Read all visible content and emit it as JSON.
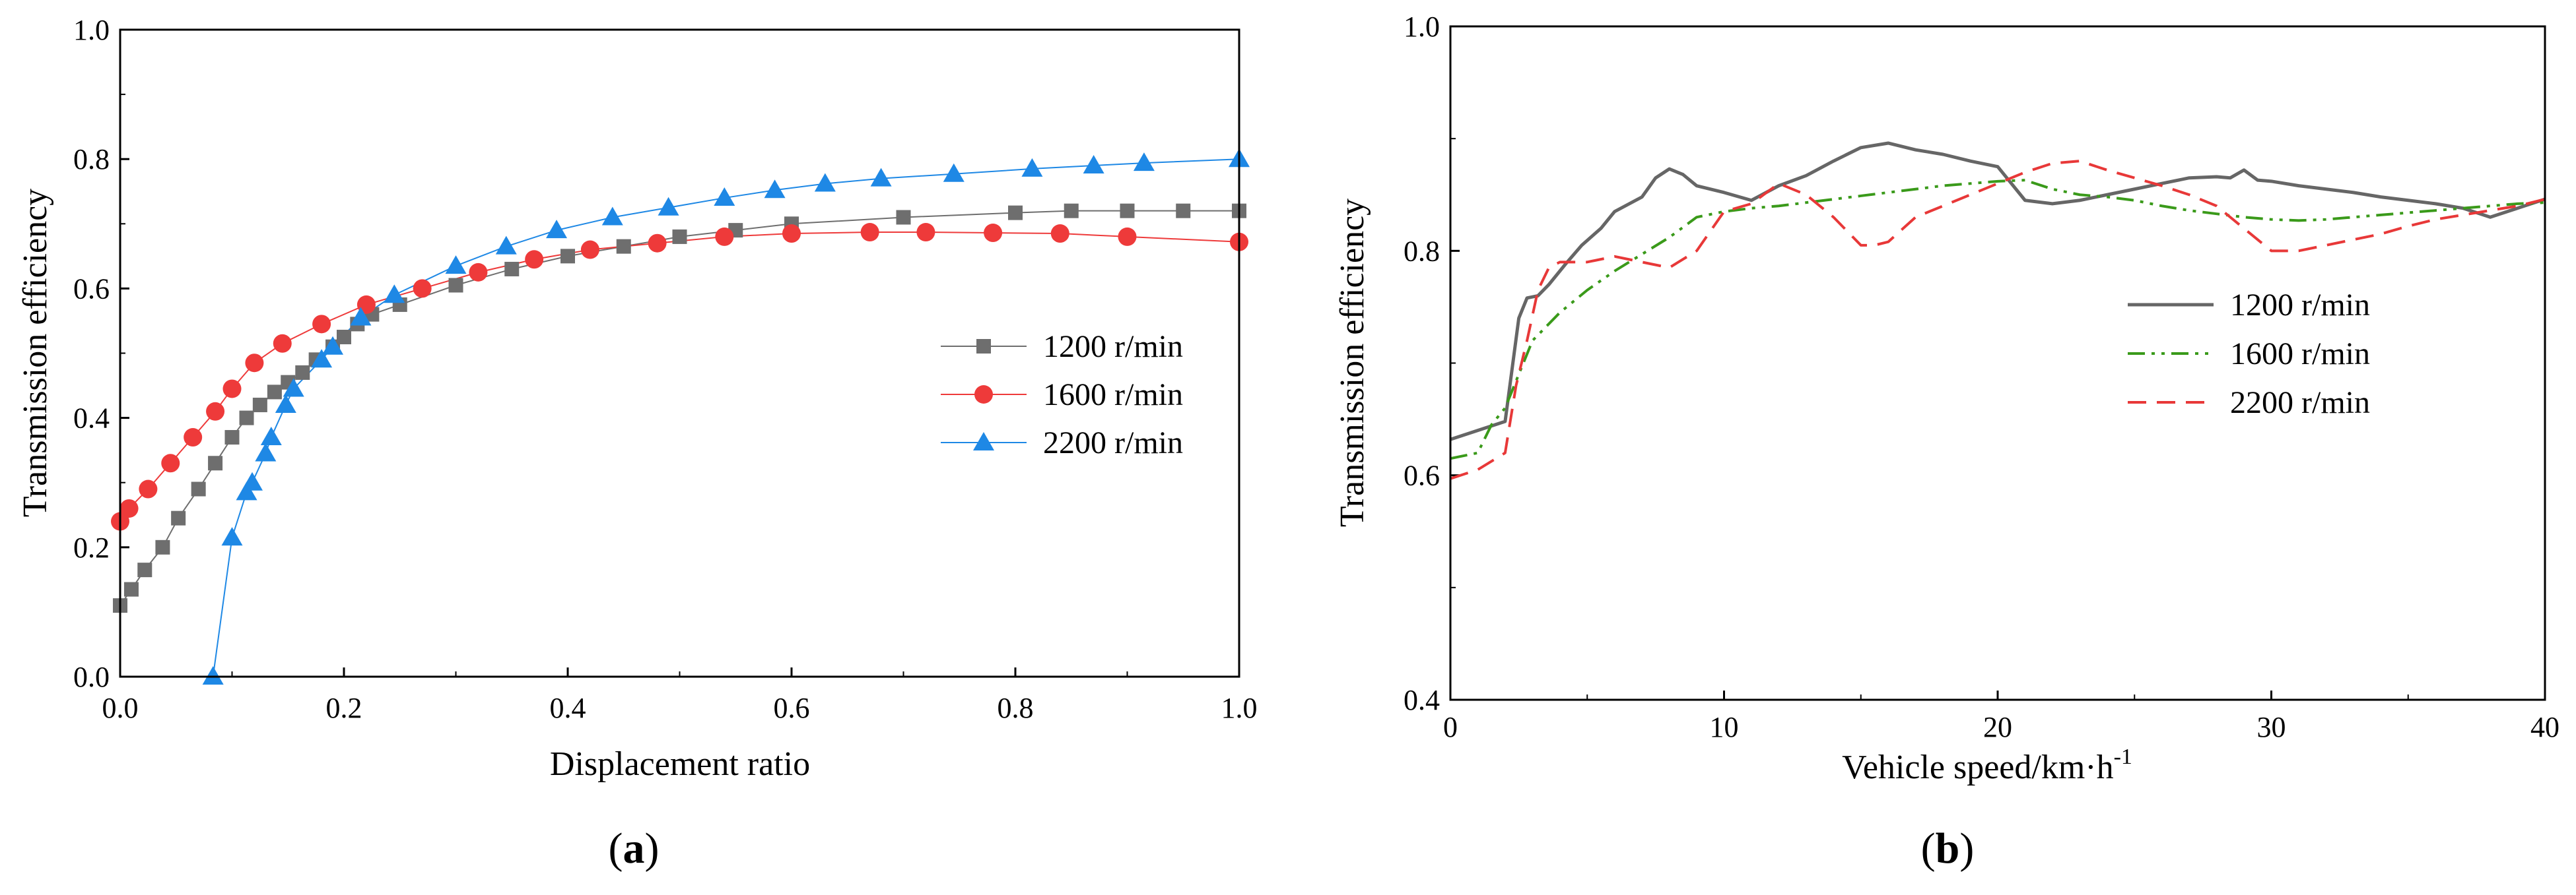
{
  "chart_data": [
    {
      "type": "line",
      "panel_label": "a",
      "xlabel": "Displacement ratio",
      "ylabel": "Transmission efficiency",
      "xlim": [
        0,
        1.0
      ],
      "ylim": [
        0,
        1.0
      ],
      "xticks": [
        "0.0",
        "0.2",
        "0.4",
        "0.6",
        "0.8",
        "1.0"
      ],
      "yticks": [
        "0.0",
        "0.2",
        "0.4",
        "0.6",
        "0.8",
        "1.0"
      ],
      "legend_position": "center-right",
      "series": [
        {
          "name": "1200 r/min",
          "color": "#6e6e6e",
          "marker": "square",
          "x": [
            0.0,
            0.01,
            0.022,
            0.038,
            0.052,
            0.07,
            0.085,
            0.1,
            0.113,
            0.125,
            0.138,
            0.15,
            0.163,
            0.175,
            0.19,
            0.2,
            0.212,
            0.225,
            0.25,
            0.3,
            0.35,
            0.4,
            0.45,
            0.5,
            0.55,
            0.6,
            0.7,
            0.8,
            0.85,
            0.9,
            0.95,
            1.0
          ],
          "y": [
            0.11,
            0.135,
            0.165,
            0.2,
            0.245,
            0.29,
            0.33,
            0.37,
            0.4,
            0.42,
            0.44,
            0.455,
            0.47,
            0.49,
            0.51,
            0.525,
            0.545,
            0.56,
            0.575,
            0.605,
            0.63,
            0.65,
            0.665,
            0.68,
            0.69,
            0.7,
            0.71,
            0.717,
            0.72,
            0.72,
            0.72,
            0.72
          ]
        },
        {
          "name": "1600 r/min",
          "color": "#ee3a3a",
          "marker": "circle",
          "x": [
            0.0,
            0.008,
            0.025,
            0.045,
            0.065,
            0.085,
            0.1,
            0.12,
            0.145,
            0.18,
            0.22,
            0.27,
            0.32,
            0.37,
            0.42,
            0.48,
            0.54,
            0.6,
            0.67,
            0.72,
            0.78,
            0.84,
            0.9,
            1.0
          ],
          "y": [
            0.24,
            0.26,
            0.29,
            0.33,
            0.37,
            0.41,
            0.445,
            0.485,
            0.515,
            0.545,
            0.575,
            0.6,
            0.625,
            0.645,
            0.66,
            0.67,
            0.68,
            0.685,
            0.687,
            0.687,
            0.686,
            0.685,
            0.68,
            0.672
          ]
        },
        {
          "name": "2200 r/min",
          "color": "#1e88e5",
          "marker": "triangle",
          "x": [
            0.083,
            0.1,
            0.113,
            0.118,
            0.13,
            0.135,
            0.148,
            0.155,
            0.18,
            0.19,
            0.215,
            0.245,
            0.3,
            0.345,
            0.39,
            0.44,
            0.49,
            0.54,
            0.585,
            0.63,
            0.68,
            0.745,
            0.815,
            0.87,
            0.915,
            1.0
          ],
          "y": [
            0.0,
            0.215,
            0.285,
            0.3,
            0.345,
            0.37,
            0.42,
            0.445,
            0.49,
            0.51,
            0.555,
            0.59,
            0.635,
            0.665,
            0.69,
            0.71,
            0.725,
            0.74,
            0.752,
            0.762,
            0.77,
            0.777,
            0.785,
            0.79,
            0.794,
            0.8
          ]
        }
      ]
    },
    {
      "type": "line",
      "panel_label": "b",
      "xlabel_main": "Vehicle speed/km·h",
      "xlabel_sup": "-1",
      "ylabel": "Transmission efficiency",
      "xlim": [
        0,
        40
      ],
      "ylim": [
        0.4,
        1.0
      ],
      "xticks": [
        "0",
        "10",
        "20",
        "30",
        "40"
      ],
      "yticks": [
        "0.4",
        "0.6",
        "0.8",
        "1.0"
      ],
      "legend_position": "center-right",
      "series": [
        {
          "name": "1200 r/min",
          "color": "#666666",
          "style": "solid",
          "x": [
            0,
            1,
            2,
            2.5,
            2.8,
            3.2,
            3.6,
            4.2,
            4.8,
            5.5,
            6,
            7,
            7.5,
            8,
            8.5,
            9,
            10,
            11,
            12,
            13,
            14,
            15,
            16,
            17,
            18,
            19,
            20,
            20.5,
            21,
            22,
            23,
            24,
            25,
            26,
            27,
            28,
            28.5,
            29,
            29.5,
            30,
            31,
            32,
            33,
            34,
            35,
            36,
            37,
            38,
            39,
            40
          ],
          "y": [
            0.632,
            0.64,
            0.648,
            0.74,
            0.758,
            0.76,
            0.77,
            0.788,
            0.805,
            0.82,
            0.835,
            0.848,
            0.865,
            0.873,
            0.868,
            0.858,
            0.852,
            0.845,
            0.858,
            0.867,
            0.88,
            0.892,
            0.896,
            0.89,
            0.886,
            0.88,
            0.875,
            0.86,
            0.845,
            0.842,
            0.845,
            0.85,
            0.855,
            0.86,
            0.865,
            0.866,
            0.865,
            0.872,
            0.863,
            0.862,
            0.858,
            0.855,
            0.852,
            0.848,
            0.845,
            0.842,
            0.838,
            0.83,
            0.838,
            0.846
          ]
        },
        {
          "name": "1600 r/min",
          "color": "#3a9a1a",
          "style": "dash-dot-dot",
          "x": [
            0,
            1,
            1.5,
            2,
            2.5,
            3,
            4,
            5,
            6,
            7,
            8,
            9,
            10,
            11,
            12,
            13,
            14,
            15,
            16,
            17,
            18,
            19,
            20,
            21,
            22,
            23,
            24,
            25,
            26,
            27,
            28,
            29,
            30,
            31,
            32,
            33,
            34,
            35,
            36,
            37,
            38,
            39,
            40
          ],
          "y": [
            0.615,
            0.62,
            0.645,
            0.66,
            0.69,
            0.72,
            0.745,
            0.765,
            0.782,
            0.797,
            0.812,
            0.83,
            0.835,
            0.838,
            0.84,
            0.843,
            0.846,
            0.849,
            0.852,
            0.855,
            0.858,
            0.86,
            0.862,
            0.863,
            0.855,
            0.85,
            0.848,
            0.845,
            0.84,
            0.836,
            0.833,
            0.83,
            0.828,
            0.827,
            0.828,
            0.83,
            0.832,
            0.834,
            0.836,
            0.838,
            0.84,
            0.842,
            0.843
          ]
        },
        {
          "name": "2200 r/min",
          "color": "#e83838",
          "style": "dashed",
          "x": [
            0,
            1,
            2,
            2.4,
            2.8,
            3.2,
            3.6,
            4,
            5,
            6,
            7,
            8,
            9,
            10,
            11,
            12,
            13,
            14,
            15,
            15.5,
            16,
            17,
            18,
            19,
            20,
            21,
            22,
            23,
            24,
            25,
            26,
            27,
            28,
            29,
            30,
            31,
            32,
            33,
            34,
            35,
            36,
            37,
            38,
            39,
            40
          ],
          "y": [
            0.597,
            0.605,
            0.62,
            0.68,
            0.72,
            0.765,
            0.785,
            0.79,
            0.79,
            0.795,
            0.79,
            0.785,
            0.8,
            0.835,
            0.842,
            0.86,
            0.85,
            0.83,
            0.805,
            0.805,
            0.808,
            0.83,
            0.84,
            0.85,
            0.86,
            0.87,
            0.878,
            0.88,
            0.872,
            0.865,
            0.858,
            0.85,
            0.84,
            0.82,
            0.8,
            0.8,
            0.805,
            0.81,
            0.815,
            0.822,
            0.828,
            0.832,
            0.836,
            0.84,
            0.846
          ]
        }
      ]
    }
  ]
}
